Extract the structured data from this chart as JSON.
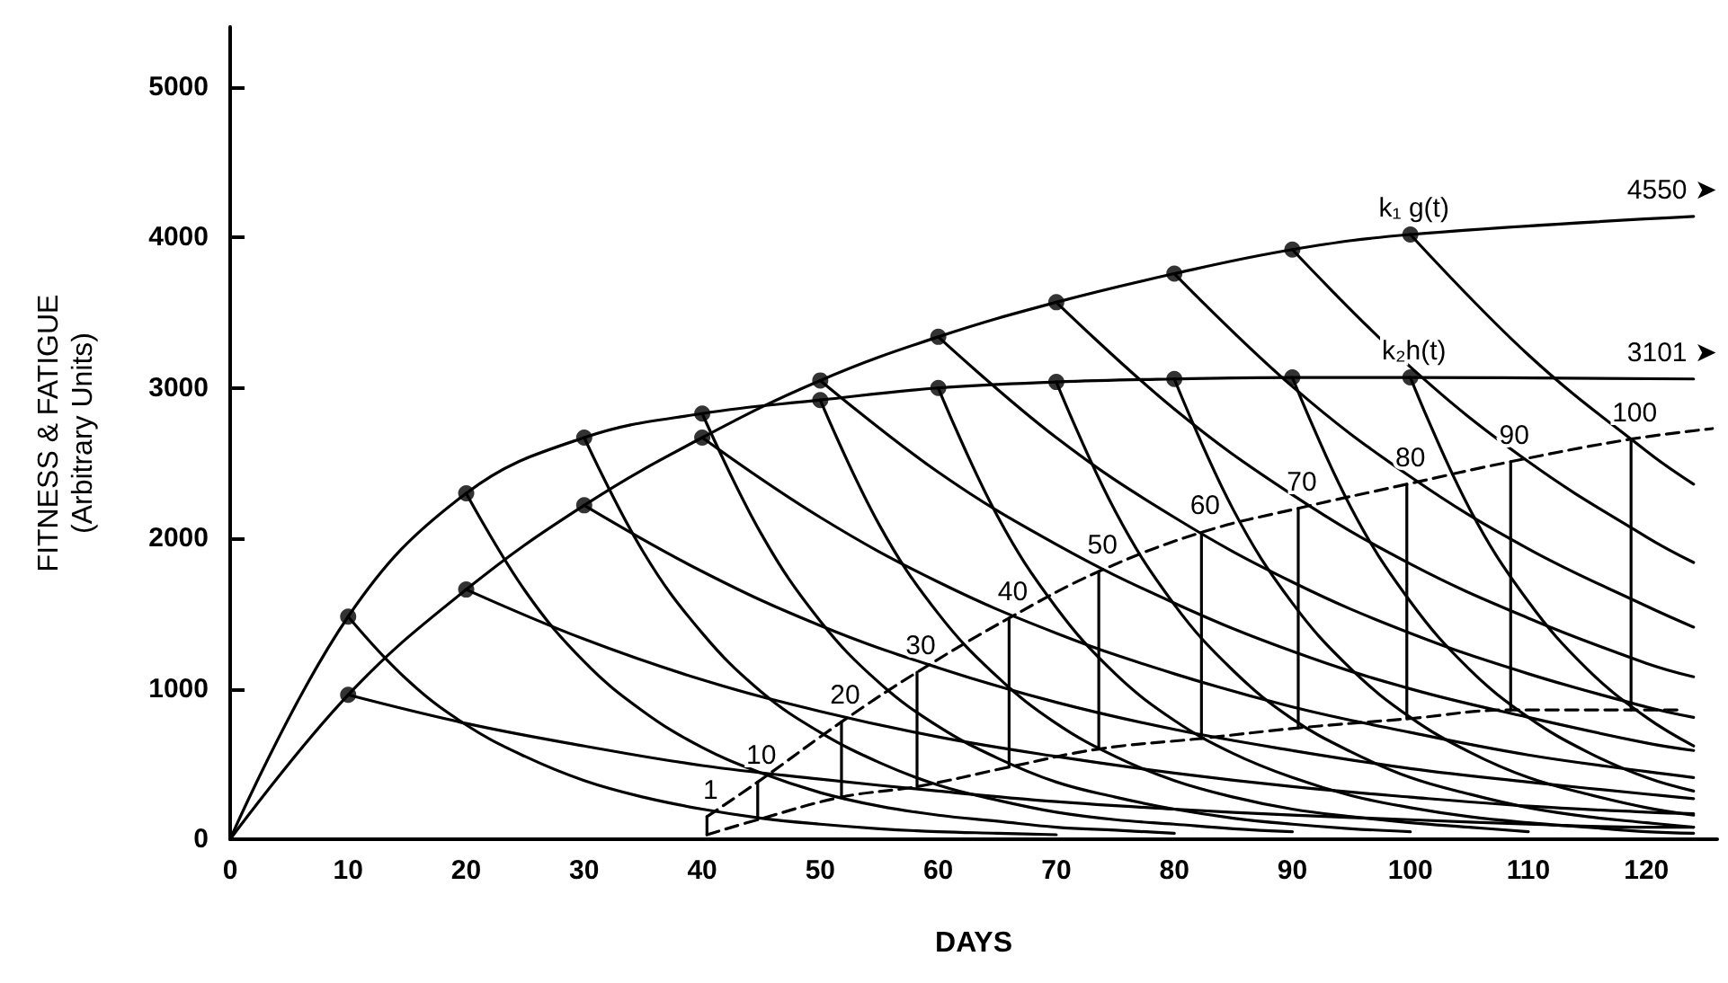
{
  "chart_data": {
    "type": "line",
    "xlabel": "DAYS",
    "ylabel": "FITNESS & FATIGUE\n(Arbitrary Units)",
    "xlim": [
      0,
      126
    ],
    "xticks": [
      0,
      10,
      20,
      30,
      40,
      50,
      60,
      70,
      80,
      90,
      100,
      110,
      120
    ],
    "ylim": [
      0,
      5400
    ],
    "yticks": [
      0,
      1000,
      2000,
      3000,
      4000,
      5000
    ],
    "grid": false,
    "marker": "none",
    "line_style": "solid",
    "series": [
      {
        "type": "line",
        "color": "#000000",
        "x": [
          0,
          10,
          20,
          30,
          40,
          50,
          60,
          70,
          80,
          90,
          100,
          124
        ],
        "values": [
          0,
          960,
          1660,
          2220,
          2670,
          3050,
          3340,
          3570,
          3760,
          3920,
          4020,
          4140
        ]
      },
      {
        "type": "line",
        "color": "#000000",
        "x": [
          0,
          10,
          20,
          30,
          40,
          50,
          60,
          70,
          80,
          90,
          100,
          124
        ],
        "values": [
          0,
          1480,
          2300,
          2670,
          2830,
          2920,
          3000,
          3040,
          3060,
          3070,
          3070,
          3060
        ]
      },
      {
        "type": "scatter",
        "marker": "circle",
        "color": "#000000",
        "x": [
          10,
          20,
          30,
          40,
          50,
          60,
          70,
          80,
          90,
          100
        ],
        "values": [
          960,
          1660,
          2220,
          2670,
          3050,
          3340,
          3570,
          3760,
          3920,
          4020
        ]
      },
      {
        "type": "scatter",
        "marker": "circle",
        "color": "#000000",
        "x": [
          10,
          20,
          30,
          40,
          50,
          60,
          70,
          80,
          90,
          100
        ],
        "values": [
          1480,
          2300,
          2670,
          2830,
          2920,
          3000,
          3040,
          3060,
          3070,
          3070
        ]
      },
      {
        "color": "#000000",
        "x": [
          10,
          20,
          30,
          40,
          50,
          60,
          70,
          80,
          90,
          100,
          110,
          120,
          124
        ],
        "values": [
          960,
          770,
          620,
          490,
          400,
          320,
          250,
          200,
          160,
          130,
          100,
          80,
          80
        ]
      },
      {
        "color": "#000000",
        "x": [
          20,
          30,
          40,
          50,
          60,
          70,
          80,
          90,
          100,
          110,
          120,
          124
        ],
        "values": [
          1660,
          1330,
          1060,
          850,
          680,
          550,
          440,
          350,
          280,
          220,
          180,
          170
        ]
      },
      {
        "color": "#000000",
        "x": [
          30,
          40,
          50,
          60,
          70,
          80,
          90,
          100,
          110,
          120,
          124
        ],
        "values": [
          2220,
          1780,
          1420,
          1140,
          910,
          730,
          590,
          470,
          380,
          300,
          270
        ]
      },
      {
        "color": "#000000",
        "x": [
          40,
          50,
          60,
          70,
          80,
          90,
          100,
          110,
          120,
          124
        ],
        "values": [
          2670,
          2140,
          1710,
          1370,
          1100,
          880,
          710,
          560,
          450,
          410
        ]
      },
      {
        "color": "#000000",
        "x": [
          50,
          60,
          70,
          80,
          90,
          100,
          110,
          120,
          124
        ],
        "values": [
          3050,
          2440,
          1960,
          1570,
          1250,
          1000,
          810,
          640,
          590
        ]
      },
      {
        "color": "#000000",
        "x": [
          60,
          70,
          80,
          90,
          100,
          110,
          120,
          124
        ],
        "values": [
          3340,
          2670,
          2140,
          1710,
          1370,
          1100,
          880,
          810
        ]
      },
      {
        "color": "#000000",
        "x": [
          70,
          80,
          90,
          100,
          110,
          120,
          124
        ],
        "values": [
          3570,
          2860,
          2290,
          1830,
          1470,
          1170,
          1080
        ]
      },
      {
        "color": "#000000",
        "x": [
          80,
          90,
          100,
          110,
          120,
          124
        ],
        "values": [
          3760,
          3010,
          2410,
          1930,
          1550,
          1410
        ]
      },
      {
        "color": "#000000",
        "x": [
          90,
          100,
          110,
          120,
          124
        ],
        "values": [
          3920,
          3140,
          2510,
          2010,
          1840
        ]
      },
      {
        "color": "#000000",
        "x": [
          100,
          110,
          120,
          124
        ],
        "values": [
          4020,
          3220,
          2580,
          2360
        ]
      },
      {
        "color": "#000000",
        "x": [
          10,
          15,
          20,
          25,
          30,
          35,
          40,
          45,
          50,
          55,
          60,
          65,
          70
        ],
        "values": [
          1480,
          1060,
          760,
          550,
          390,
          280,
          200,
          140,
          100,
          70,
          50,
          40,
          30
        ]
      },
      {
        "color": "#000000",
        "x": [
          20,
          25,
          30,
          35,
          40,
          45,
          50,
          55,
          60,
          65,
          70,
          75,
          80
        ],
        "values": [
          2300,
          1650,
          1180,
          850,
          610,
          440,
          310,
          220,
          160,
          120,
          80,
          60,
          40
        ]
      },
      {
        "color": "#000000",
        "x": [
          30,
          35,
          40,
          45,
          50,
          55,
          60,
          65,
          70,
          75,
          80,
          85,
          90
        ],
        "values": [
          2670,
          1910,
          1370,
          980,
          710,
          510,
          360,
          260,
          180,
          130,
          100,
          70,
          50
        ]
      },
      {
        "color": "#000000",
        "x": [
          40,
          45,
          50,
          55,
          60,
          65,
          70,
          75,
          80,
          85,
          90,
          95,
          100
        ],
        "values": [
          2830,
          2030,
          1450,
          1040,
          750,
          540,
          380,
          280,
          200,
          140,
          100,
          70,
          50
        ]
      },
      {
        "color": "#000000",
        "x": [
          50,
          55,
          60,
          65,
          70,
          75,
          80,
          85,
          90,
          95,
          100,
          105,
          110
        ],
        "values": [
          2920,
          2090,
          1500,
          1080,
          770,
          550,
          390,
          280,
          200,
          150,
          110,
          80,
          50
        ]
      },
      {
        "color": "#000000",
        "x": [
          60,
          65,
          70,
          75,
          80,
          85,
          90,
          95,
          100,
          105,
          110,
          115,
          120,
          124
        ],
        "values": [
          3000,
          2150,
          1540,
          1100,
          790,
          570,
          410,
          290,
          210,
          150,
          110,
          80,
          50,
          40
        ]
      },
      {
        "color": "#000000",
        "x": [
          70,
          75,
          80,
          85,
          90,
          95,
          100,
          105,
          110,
          115,
          120,
          124
        ],
        "values": [
          3040,
          2180,
          1560,
          1120,
          800,
          580,
          410,
          300,
          210,
          150,
          110,
          80
        ]
      },
      {
        "color": "#000000",
        "x": [
          80,
          85,
          90,
          95,
          100,
          105,
          110,
          115,
          120,
          124
        ],
        "values": [
          3060,
          2190,
          1570,
          1130,
          810,
          580,
          410,
          300,
          210,
          160
        ]
      },
      {
        "color": "#000000",
        "x": [
          90,
          95,
          100,
          105,
          110,
          115,
          120,
          124
        ],
        "values": [
          3070,
          2200,
          1580,
          1130,
          810,
          580,
          410,
          320
        ]
      },
      {
        "color": "#000000",
        "x": [
          100,
          105,
          110,
          115,
          120,
          124
        ],
        "values": [
          3070,
          2200,
          1580,
          1130,
          810,
          620
        ]
      },
      {
        "color": "#000000",
        "line_style": "dashed",
        "x": [
          40.4,
          44.7,
          51.8,
          58.2,
          66,
          73.6,
          82.3,
          90.5,
          99.7,
          108.5,
          118.7,
          125.6
        ],
        "values": [
          150,
          380,
          780,
          1110,
          1470,
          1780,
          2040,
          2200,
          2360,
          2510,
          2660,
          2730
        ]
      },
      {
        "color": "#000000",
        "line_style": "dashed",
        "x": [
          40.4,
          44.7,
          51.8,
          58.2,
          66,
          73.6,
          82.3,
          90.5,
          99.7,
          108.5,
          118.7,
          123
        ],
        "values": [
          30,
          130,
          280,
          350,
          480,
          600,
          670,
          740,
          800,
          860,
          860,
          860
        ]
      },
      {
        "color": "#000000",
        "x": [
          40.4,
          40.4
        ],
        "values": [
          30,
          150
        ]
      },
      {
        "color": "#000000",
        "x": [
          44.7,
          44.7
        ],
        "values": [
          130,
          380
        ]
      },
      {
        "color": "#000000",
        "x": [
          51.8,
          51.8
        ],
        "values": [
          280,
          780
        ]
      },
      {
        "color": "#000000",
        "x": [
          58.2,
          58.2
        ],
        "values": [
          350,
          1110
        ]
      },
      {
        "color": "#000000",
        "x": [
          66,
          66
        ],
        "values": [
          480,
          1470
        ]
      },
      {
        "color": "#000000",
        "x": [
          73.6,
          73.6
        ],
        "values": [
          600,
          1780
        ]
      },
      {
        "color": "#000000",
        "x": [
          82.3,
          82.3
        ],
        "values": [
          670,
          2040
        ]
      },
      {
        "color": "#000000",
        "x": [
          90.5,
          90.5
        ],
        "values": [
          740,
          2200
        ]
      },
      {
        "color": "#000000",
        "x": [
          99.7,
          99.7
        ],
        "values": [
          800,
          2360
        ]
      },
      {
        "color": "#000000",
        "x": [
          108.5,
          108.5
        ],
        "values": [
          860,
          2510
        ]
      },
      {
        "color": "#000000",
        "x": [
          118.7,
          118.7
        ],
        "values": [
          860,
          2660
        ]
      }
    ],
    "annotations": [
      {
        "text": "k₁ g(t)",
        "x": 100,
        "y": 4020
      },
      {
        "text": "k₂h(t)",
        "x": 100,
        "y": 3070
      },
      {
        "text": "4550 ➤",
        "x": 124,
        "y": 4140
      },
      {
        "text": "3101 ➤",
        "x": 124,
        "y": 3060
      },
      {
        "text": "1",
        "x": 40.4,
        "y": 150
      },
      {
        "text": "10",
        "x": 44.7,
        "y": 380
      },
      {
        "text": "20",
        "x": 51.8,
        "y": 780
      },
      {
        "text": "30",
        "x": 58.2,
        "y": 1110
      },
      {
        "text": "40",
        "x": 66,
        "y": 1470
      },
      {
        "text": "50",
        "x": 73.6,
        "y": 1780
      },
      {
        "text": "60",
        "x": 82.3,
        "y": 2040
      },
      {
        "text": "70",
        "x": 90.5,
        "y": 2200
      },
      {
        "text": "80",
        "x": 99.7,
        "y": 2360
      },
      {
        "text": "90",
        "x": 108.5,
        "y": 2510
      },
      {
        "text": "100",
        "x": 118.7,
        "y": 2660
      }
    ]
  }
}
